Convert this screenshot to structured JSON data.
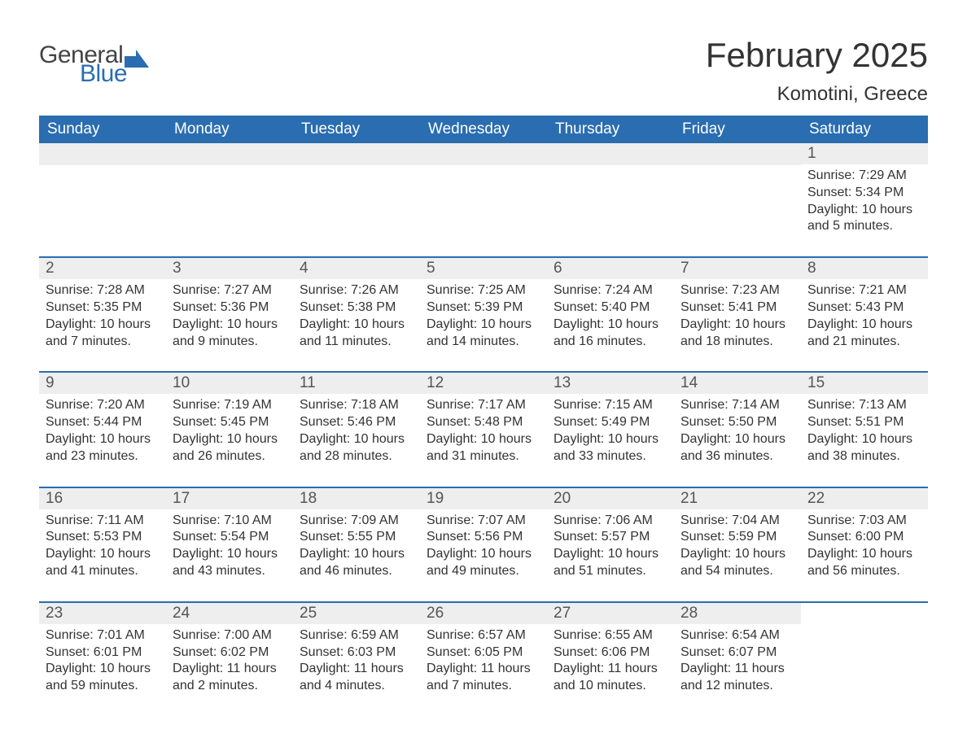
{
  "logo": {
    "text1": "General",
    "text2": "Blue",
    "icon_color": "#2a6db0"
  },
  "title": "February 2025",
  "location": "Komotini, Greece",
  "colors": {
    "header_bg": "#2a6db0",
    "header_text": "#ffffff",
    "day_bar_bg": "#eeeeee",
    "border": "#2a6db0",
    "text": "#333333",
    "background": "#ffffff"
  },
  "typography": {
    "title_fontsize": 42,
    "location_fontsize": 24,
    "header_fontsize": 19,
    "daynum_fontsize": 19,
    "body_fontsize": 16
  },
  "columns": [
    "Sunday",
    "Monday",
    "Tuesday",
    "Wednesday",
    "Thursday",
    "Friday",
    "Saturday"
  ],
  "weeks": [
    [
      null,
      null,
      null,
      null,
      null,
      null,
      {
        "n": "1",
        "sunrise": "7:29 AM",
        "sunset": "5:34 PM",
        "daylight": "10 hours and 5 minutes."
      }
    ],
    [
      {
        "n": "2",
        "sunrise": "7:28 AM",
        "sunset": "5:35 PM",
        "daylight": "10 hours and 7 minutes."
      },
      {
        "n": "3",
        "sunrise": "7:27 AM",
        "sunset": "5:36 PM",
        "daylight": "10 hours and 9 minutes."
      },
      {
        "n": "4",
        "sunrise": "7:26 AM",
        "sunset": "5:38 PM",
        "daylight": "10 hours and 11 minutes."
      },
      {
        "n": "5",
        "sunrise": "7:25 AM",
        "sunset": "5:39 PM",
        "daylight": "10 hours and 14 minutes."
      },
      {
        "n": "6",
        "sunrise": "7:24 AM",
        "sunset": "5:40 PM",
        "daylight": "10 hours and 16 minutes."
      },
      {
        "n": "7",
        "sunrise": "7:23 AM",
        "sunset": "5:41 PM",
        "daylight": "10 hours and 18 minutes."
      },
      {
        "n": "8",
        "sunrise": "7:21 AM",
        "sunset": "5:43 PM",
        "daylight": "10 hours and 21 minutes."
      }
    ],
    [
      {
        "n": "9",
        "sunrise": "7:20 AM",
        "sunset": "5:44 PM",
        "daylight": "10 hours and 23 minutes."
      },
      {
        "n": "10",
        "sunrise": "7:19 AM",
        "sunset": "5:45 PM",
        "daylight": "10 hours and 26 minutes."
      },
      {
        "n": "11",
        "sunrise": "7:18 AM",
        "sunset": "5:46 PM",
        "daylight": "10 hours and 28 minutes."
      },
      {
        "n": "12",
        "sunrise": "7:17 AM",
        "sunset": "5:48 PM",
        "daylight": "10 hours and 31 minutes."
      },
      {
        "n": "13",
        "sunrise": "7:15 AM",
        "sunset": "5:49 PM",
        "daylight": "10 hours and 33 minutes."
      },
      {
        "n": "14",
        "sunrise": "7:14 AM",
        "sunset": "5:50 PM",
        "daylight": "10 hours and 36 minutes."
      },
      {
        "n": "15",
        "sunrise": "7:13 AM",
        "sunset": "5:51 PM",
        "daylight": "10 hours and 38 minutes."
      }
    ],
    [
      {
        "n": "16",
        "sunrise": "7:11 AM",
        "sunset": "5:53 PM",
        "daylight": "10 hours and 41 minutes."
      },
      {
        "n": "17",
        "sunrise": "7:10 AM",
        "sunset": "5:54 PM",
        "daylight": "10 hours and 43 minutes."
      },
      {
        "n": "18",
        "sunrise": "7:09 AM",
        "sunset": "5:55 PM",
        "daylight": "10 hours and 46 minutes."
      },
      {
        "n": "19",
        "sunrise": "7:07 AM",
        "sunset": "5:56 PM",
        "daylight": "10 hours and 49 minutes."
      },
      {
        "n": "20",
        "sunrise": "7:06 AM",
        "sunset": "5:57 PM",
        "daylight": "10 hours and 51 minutes."
      },
      {
        "n": "21",
        "sunrise": "7:04 AM",
        "sunset": "5:59 PM",
        "daylight": "10 hours and 54 minutes."
      },
      {
        "n": "22",
        "sunrise": "7:03 AM",
        "sunset": "6:00 PM",
        "daylight": "10 hours and 56 minutes."
      }
    ],
    [
      {
        "n": "23",
        "sunrise": "7:01 AM",
        "sunset": "6:01 PM",
        "daylight": "10 hours and 59 minutes."
      },
      {
        "n": "24",
        "sunrise": "7:00 AM",
        "sunset": "6:02 PM",
        "daylight": "11 hours and 2 minutes."
      },
      {
        "n": "25",
        "sunrise": "6:59 AM",
        "sunset": "6:03 PM",
        "daylight": "11 hours and 4 minutes."
      },
      {
        "n": "26",
        "sunrise": "6:57 AM",
        "sunset": "6:05 PM",
        "daylight": "11 hours and 7 minutes."
      },
      {
        "n": "27",
        "sunrise": "6:55 AM",
        "sunset": "6:06 PM",
        "daylight": "11 hours and 10 minutes."
      },
      {
        "n": "28",
        "sunrise": "6:54 AM",
        "sunset": "6:07 PM",
        "daylight": "11 hours and 12 minutes."
      },
      null
    ]
  ],
  "labels": {
    "sunrise": "Sunrise: ",
    "sunset": "Sunset: ",
    "daylight": "Daylight: "
  }
}
